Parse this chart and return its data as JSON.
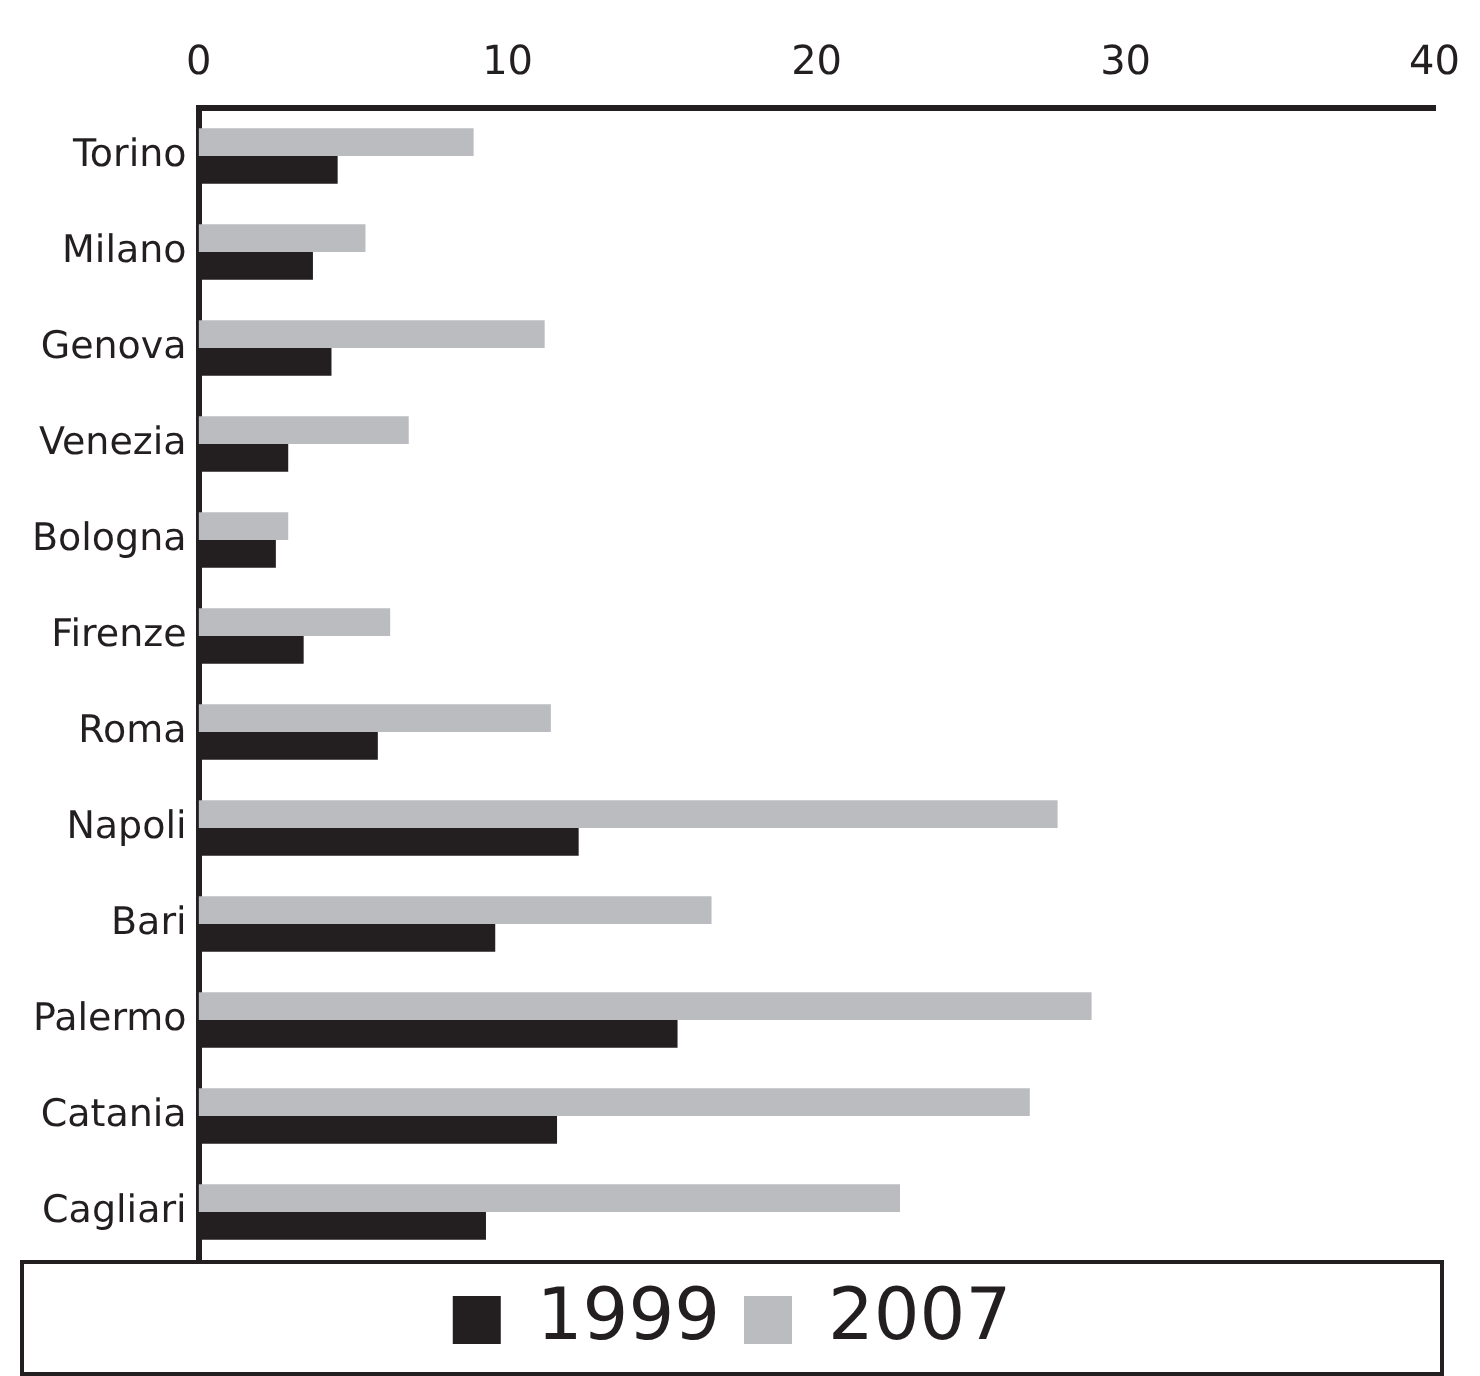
{
  "chart_data": {
    "type": "bar",
    "orientation": "horizontal",
    "categories": [
      "Torino",
      "Milano",
      "Genova",
      "Venezia",
      "Bologna",
      "Firenze",
      "Roma",
      "Napoli",
      "Bari",
      "Palermo",
      "Catania",
      "Cagliari"
    ],
    "series": [
      {
        "name": "1999",
        "color": "#231f20",
        "values": [
          4.5,
          3.7,
          4.3,
          2.9,
          2.5,
          3.4,
          5.8,
          12.3,
          9.6,
          15.5,
          11.6,
          9.3
        ]
      },
      {
        "name": "2007",
        "color": "#bbbcc0",
        "values": [
          8.9,
          5.4,
          11.2,
          6.8,
          2.9,
          6.2,
          11.4,
          27.8,
          16.6,
          28.9,
          26.9,
          22.7
        ]
      }
    ],
    "xlim": [
      0,
      40
    ],
    "xticks": [
      0,
      10,
      20,
      30,
      40
    ],
    "grid": false,
    "legend": "bottom"
  }
}
